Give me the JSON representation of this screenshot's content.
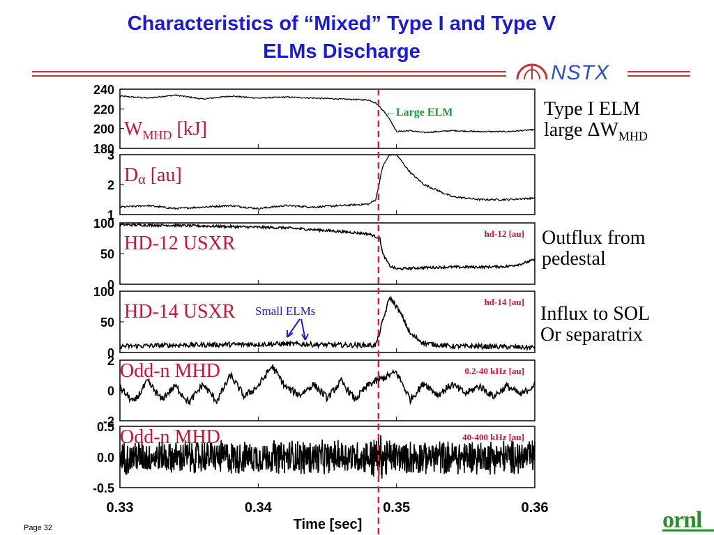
{
  "slide": {
    "title_line1": "Characteristics of “Mixed” Type I and Type V",
    "title_line2": "ELMs Discharge",
    "logo_text": "NSTX",
    "page_label": "Page 32",
    "footer_logo": "ornl"
  },
  "annotations": {
    "type1_line1": "Type I ELM",
    "type1_line2_prefix": "large ΔW",
    "type1_line2_sub": "MHD",
    "outflux_line1": "Outflux from",
    "outflux_line2": "pedestal",
    "influx_line1": "Influx to SOL",
    "influx_line2": "Or separatrix",
    "large_elm": "←Large ELM",
    "small_elms": "Small ELMs"
  },
  "colors": {
    "title": "#1a1ad8",
    "label_red": "#d01030",
    "arrow_green": "#1a9a3a",
    "arrow_blue": "#1a1ad8",
    "elm_line": "#e02020",
    "trace": "#000000"
  },
  "chart_data": {
    "type": "line",
    "xlabel": "Time [sec]",
    "xlim": [
      0.33,
      0.36
    ],
    "xticks": [
      "0.33",
      "0.34",
      "0.35",
      "0.36"
    ],
    "elm_marker_time": 0.3487,
    "panels": [
      {
        "label_main": "W",
        "label_sub": "MHD",
        "label_tail": " [kJ]",
        "right_label": "",
        "ylim": [
          180,
          240
        ],
        "yticks": [
          "240",
          "220",
          "200",
          "180"
        ],
        "x": [
          0.33,
          0.332,
          0.334,
          0.336,
          0.338,
          0.34,
          0.342,
          0.344,
          0.346,
          0.348,
          0.3485,
          0.349,
          0.3495,
          0.35,
          0.351,
          0.352,
          0.354,
          0.356,
          0.358,
          0.36
        ],
        "y": [
          233,
          231,
          234,
          230,
          233,
          231,
          232,
          231,
          230,
          229,
          226,
          219,
          210,
          197,
          198,
          196,
          198,
          197,
          197,
          199
        ]
      },
      {
        "label_main": "D",
        "label_sub": "",
        "label_alpha": "α",
        "label_tail": " [au]",
        "right_label": "",
        "ylim": [
          1,
          3
        ],
        "yticks": [
          "3",
          "2",
          "1"
        ],
        "x": [
          0.33,
          0.332,
          0.334,
          0.336,
          0.338,
          0.34,
          0.342,
          0.344,
          0.346,
          0.348,
          0.3485,
          0.349,
          0.3495,
          0.35,
          0.351,
          0.352,
          0.354,
          0.356,
          0.358,
          0.36
        ],
        "y": [
          1.25,
          1.3,
          1.2,
          1.25,
          1.3,
          1.2,
          1.3,
          1.25,
          1.3,
          1.35,
          1.5,
          2.6,
          3.0,
          3.0,
          2.4,
          2.0,
          1.6,
          1.5,
          1.5,
          1.55
        ]
      },
      {
        "label_main": "HD-12 USXR",
        "label_sub": "",
        "label_tail": "",
        "right_label": "hd-12 [au]",
        "ylim": [
          0,
          100
        ],
        "yticks": [
          "100",
          "50",
          "0"
        ],
        "x": [
          0.33,
          0.334,
          0.338,
          0.342,
          0.346,
          0.348,
          0.3488,
          0.349,
          0.3495,
          0.35,
          0.352,
          0.354,
          0.356,
          0.358,
          0.359,
          0.36
        ],
        "y": [
          97,
          96,
          94,
          92,
          86,
          82,
          75,
          50,
          30,
          25,
          27,
          28,
          28,
          29,
          33,
          40
        ]
      },
      {
        "label_main": "HD-14 USXR",
        "label_sub": "",
        "label_tail": "",
        "right_label": "hd-14 [au]",
        "ylim": [
          0,
          100
        ],
        "yticks": [
          "100",
          "50",
          "0"
        ],
        "x": [
          0.33,
          0.334,
          0.338,
          0.342,
          0.346,
          0.3485,
          0.349,
          0.3495,
          0.35,
          0.3505,
          0.351,
          0.352,
          0.354,
          0.356,
          0.36
        ],
        "y": [
          10,
          12,
          13,
          14,
          12,
          12,
          50,
          90,
          75,
          55,
          30,
          15,
          10,
          10,
          8
        ]
      },
      {
        "label_main": "Odd-n MHD",
        "label_sub": "",
        "label_tail": "",
        "right_label": "0.2-40 kHz [au]",
        "ylim": [
          -2,
          2
        ],
        "yticks": [
          "2",
          "0",
          "-2"
        ],
        "x": [
          0.33,
          0.331,
          0.332,
          0.333,
          0.334,
          0.335,
          0.336,
          0.337,
          0.338,
          0.339,
          0.34,
          0.341,
          0.342,
          0.343,
          0.344,
          0.345,
          0.346,
          0.347,
          0.348,
          0.349,
          0.35,
          0.351,
          0.352,
          0.353,
          0.354,
          0.355,
          0.356,
          0.357,
          0.358,
          0.359,
          0.36
        ],
        "y": [
          0.2,
          -0.8,
          0.6,
          -0.6,
          0.3,
          -0.8,
          0.4,
          -0.7,
          1.0,
          -0.4,
          0.3,
          1.6,
          0.2,
          -0.3,
          0.4,
          -0.5,
          0.6,
          -0.6,
          0.4,
          0.8,
          1.2,
          -0.6,
          0.5,
          -0.3,
          0.4,
          -0.2,
          0.3,
          -0.4,
          0.3,
          -0.3,
          0.4
        ]
      },
      {
        "label_main": "Odd-n MHD",
        "label_sub": "",
        "label_tail": "",
        "right_label": "40-400 kHz [au]",
        "ylim": [
          -0.5,
          0.5
        ],
        "yticks": [
          "0.5",
          "0.0",
          "-0.5"
        ],
        "noise_amplitude": 0.3
      }
    ]
  }
}
